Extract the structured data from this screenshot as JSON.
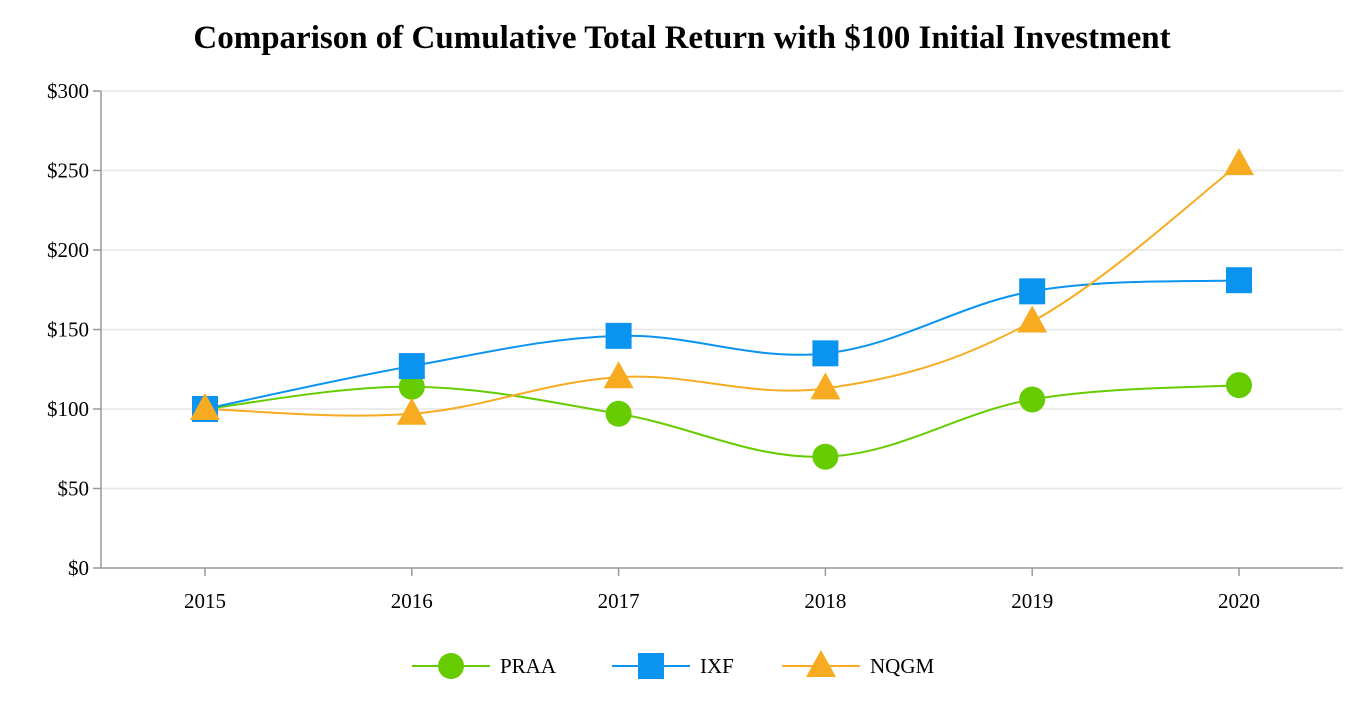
{
  "chart_data": {
    "type": "line",
    "title": "Comparison of Cumulative Total Return with $100 Initial Investment",
    "xlabel": "",
    "ylabel": "",
    "categories": [
      "2015",
      "2016",
      "2017",
      "2018",
      "2019",
      "2020"
    ],
    "ylim": [
      0,
      300
    ],
    "yticks": [
      0,
      50,
      100,
      150,
      200,
      250,
      300
    ],
    "ytick_labels": [
      "$0",
      "$50",
      "$100",
      "$150",
      "$200",
      "$250",
      "$300"
    ],
    "grid": true,
    "legend_position": "bottom-center",
    "series": [
      {
        "name": "PRAA",
        "color": "#66cc00",
        "marker": "circle",
        "values": [
          100,
          114,
          97,
          70,
          106,
          115
        ]
      },
      {
        "name": "IXF",
        "color": "#0a94f0",
        "marker": "square",
        "values": [
          100,
          127,
          146,
          135,
          174,
          181
        ]
      },
      {
        "name": "NQGM",
        "color": "#f7ab20",
        "marker": "triangle",
        "values": [
          100,
          97,
          120,
          113,
          155,
          254
        ]
      }
    ]
  }
}
